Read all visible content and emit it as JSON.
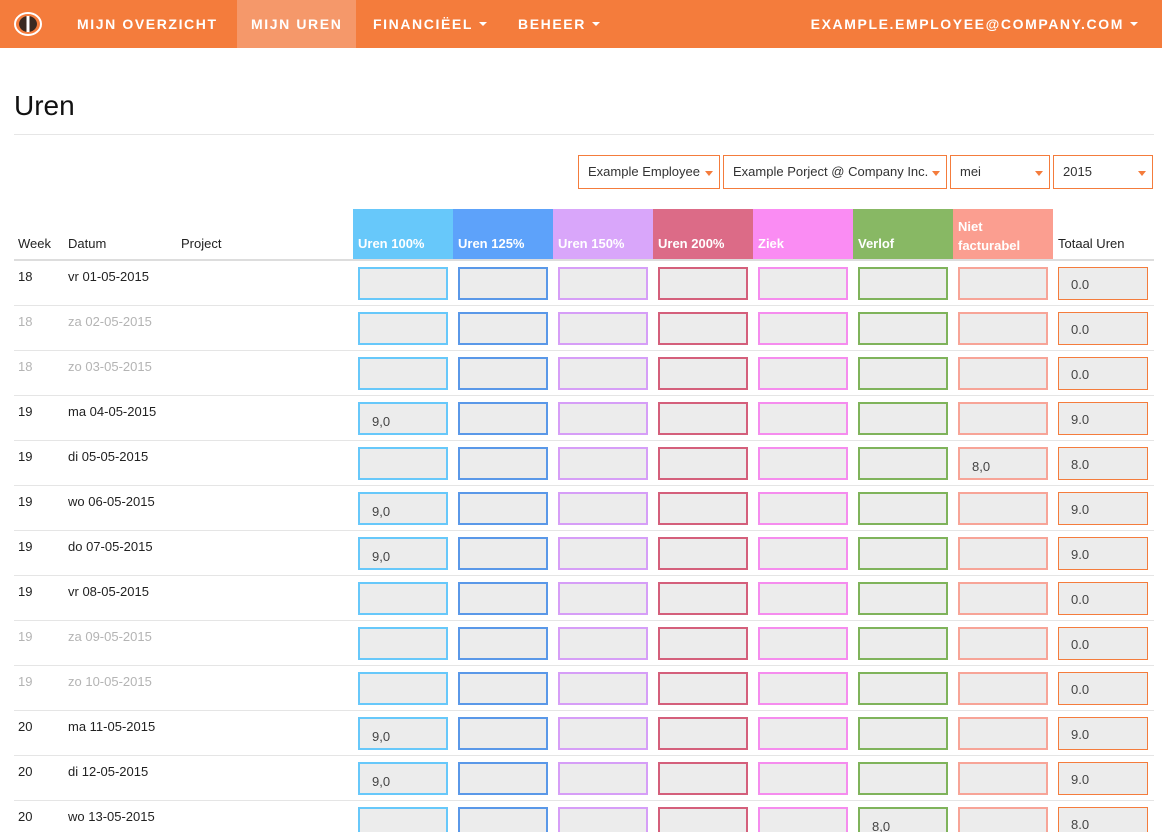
{
  "nav": {
    "items": [
      {
        "label": "MIJN OVERZICHT",
        "active": false,
        "dropdown": false
      },
      {
        "label": "MIJN UREN",
        "active": true,
        "dropdown": false
      },
      {
        "label": "FINANCIËEL",
        "active": false,
        "dropdown": true
      },
      {
        "label": "BEHEER",
        "active": false,
        "dropdown": true
      }
    ],
    "user": "EXAMPLE.EMPLOYEE@COMPANY.COM"
  },
  "page": {
    "title": "Uren"
  },
  "filters": {
    "employee": "Example Employee",
    "project": "Example Porject @ Company Inc.",
    "month": "mei",
    "year": "2015"
  },
  "table": {
    "headers": {
      "week": "Week",
      "date": "Datum",
      "project": "Project",
      "total": "Totaal Uren",
      "hour_columns": [
        {
          "label": "Uren 100%",
          "color": "#67c8fa",
          "border": "#67c8fa"
        },
        {
          "label": "Uren 125%",
          "color": "#5da2fa",
          "border": "#5a98e8"
        },
        {
          "label": "Uren 150%",
          "color": "#d9a6fa",
          "border": "#d69ef7"
        },
        {
          "label": "Uren 200%",
          "color": "#dc6b87",
          "border": "#d45f7b"
        },
        {
          "label": "Ziek",
          "color": "#fa8cf3",
          "border": "#f58cee"
        },
        {
          "label": "Verlof",
          "color": "#88b864",
          "border": "#7fb35b"
        },
        {
          "label_line1": "Niet",
          "label_line2": "facturabel",
          "color": "#fb9e90",
          "border": "#f7a497"
        }
      ]
    },
    "rows": [
      {
        "week": "18",
        "date": "vr 01-05-2015",
        "weekend": false,
        "hours": [
          "",
          "",
          "",
          "",
          "",
          "",
          ""
        ],
        "total": "0.0"
      },
      {
        "week": "18",
        "date": "za 02-05-2015",
        "weekend": true,
        "hours": [
          "",
          "",
          "",
          "",
          "",
          "",
          ""
        ],
        "total": "0.0"
      },
      {
        "week": "18",
        "date": "zo 03-05-2015",
        "weekend": true,
        "hours": [
          "",
          "",
          "",
          "",
          "",
          "",
          ""
        ],
        "total": "0.0"
      },
      {
        "week": "19",
        "date": "ma 04-05-2015",
        "weekend": false,
        "hours": [
          "9,0",
          "",
          "",
          "",
          "",
          "",
          ""
        ],
        "total": "9.0"
      },
      {
        "week": "19",
        "date": "di 05-05-2015",
        "weekend": false,
        "hours": [
          "",
          "",
          "",
          "",
          "",
          "",
          "8,0"
        ],
        "total": "8.0"
      },
      {
        "week": "19",
        "date": "wo 06-05-2015",
        "weekend": false,
        "hours": [
          "9,0",
          "",
          "",
          "",
          "",
          "",
          ""
        ],
        "total": "9.0"
      },
      {
        "week": "19",
        "date": "do 07-05-2015",
        "weekend": false,
        "hours": [
          "9,0",
          "",
          "",
          "",
          "",
          "",
          ""
        ],
        "total": "9.0"
      },
      {
        "week": "19",
        "date": "vr 08-05-2015",
        "weekend": false,
        "hours": [
          "",
          "",
          "",
          "",
          "",
          "",
          ""
        ],
        "total": "0.0"
      },
      {
        "week": "19",
        "date": "za 09-05-2015",
        "weekend": true,
        "hours": [
          "",
          "",
          "",
          "",
          "",
          "",
          ""
        ],
        "total": "0.0"
      },
      {
        "week": "19",
        "date": "zo 10-05-2015",
        "weekend": true,
        "hours": [
          "",
          "",
          "",
          "",
          "",
          "",
          ""
        ],
        "total": "0.0"
      },
      {
        "week": "20",
        "date": "ma 11-05-2015",
        "weekend": false,
        "hours": [
          "9,0",
          "",
          "",
          "",
          "",
          "",
          ""
        ],
        "total": "9.0"
      },
      {
        "week": "20",
        "date": "di 12-05-2015",
        "weekend": false,
        "hours": [
          "9,0",
          "",
          "",
          "",
          "",
          "",
          ""
        ],
        "total": "9.0"
      },
      {
        "week": "20",
        "date": "wo 13-05-2015",
        "weekend": false,
        "hours": [
          "",
          "",
          "",
          "",
          "",
          "8,0",
          ""
        ],
        "total": "8.0"
      }
    ]
  },
  "colors": {
    "accent": "#f47c3c",
    "nav_active": "#f5986a"
  }
}
